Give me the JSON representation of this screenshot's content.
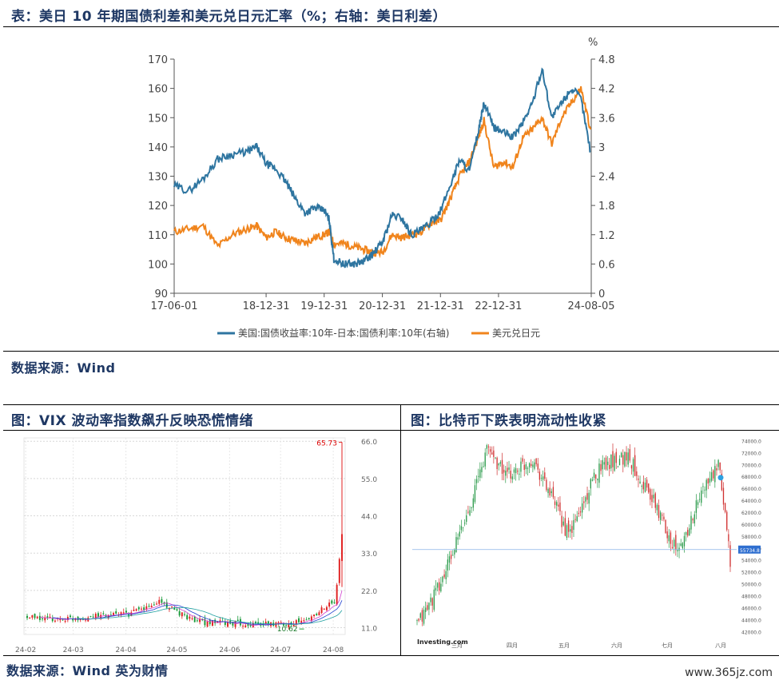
{
  "main_title": "表：美日 10 年期国债利差和美元兑日元汇率（%；右轴：美日利差）",
  "main_source": "数据来源：Wind",
  "vix_title": "图：VIX 波动率指数飙升反映恐慌情绪",
  "btc_title": "图：比特币下跌表明流动性收紧",
  "bottom_source": "数据来源：Wind 英为财情",
  "watermark": "www.365jz.com",
  "colors": {
    "spread": "#2e75a0",
    "usdjpy": "#f0841c",
    "title": "#1f3864"
  },
  "chart_data": [
    {
      "type": "line",
      "title": "",
      "right_axis_unit": "%",
      "x_ticks": [
        "17-06-01",
        "18-12-31",
        "19-12-31",
        "20-12-31",
        "21-12-31",
        "22-12-31",
        "24-08-05"
      ],
      "y_left_ticks": [
        "90",
        "100",
        "110",
        "120",
        "130",
        "140",
        "150",
        "160",
        "170"
      ],
      "y_right_ticks": [
        "0",
        "0.6",
        "1.2",
        "1.8",
        "2.4",
        "3",
        "3.6",
        "4.2",
        "4.8"
      ],
      "ylim_left": [
        90,
        170
      ],
      "ylim_right": [
        0,
        4.8
      ],
      "legend": [
        "美国:国债收益率:10年-日本:国债利率:10年(右轴)",
        "美元兑日元"
      ],
      "legend_position": "bottom",
      "series": [
        {
          "name": "美国:国债收益率:10年-日本:国债利率:10年(右轴)",
          "axis": "right",
          "x": [
            "2017-06",
            "2017-09",
            "2017-12",
            "2018-03",
            "2018-06",
            "2018-09",
            "2018-11",
            "2019-01",
            "2019-03",
            "2019-05",
            "2019-07",
            "2019-09",
            "2019-11",
            "2020-01",
            "2020-02",
            "2020-03",
            "2020-05",
            "2020-07",
            "2020-09",
            "2020-11",
            "2021-01",
            "2021-03",
            "2021-05",
            "2021-07",
            "2021-09",
            "2021-11",
            "2022-01",
            "2022-03",
            "2022-05",
            "2022-07",
            "2022-09",
            "2022-10",
            "2022-12",
            "2023-02",
            "2023-04",
            "2023-06",
            "2023-08",
            "2023-10",
            "2023-12",
            "2024-02",
            "2024-04",
            "2024-06",
            "2024-08"
          ],
          "values": [
            2.2,
            2.1,
            2.35,
            2.75,
            2.85,
            2.9,
            3.0,
            2.65,
            2.55,
            2.3,
            1.95,
            1.65,
            1.75,
            1.7,
            1.5,
            0.7,
            0.6,
            0.6,
            0.65,
            0.8,
            1.05,
            1.6,
            1.55,
            1.2,
            1.3,
            1.45,
            1.7,
            2.2,
            2.75,
            2.5,
            3.4,
            3.9,
            3.4,
            3.3,
            3.2,
            3.5,
            3.9,
            4.6,
            3.6,
            3.9,
            4.2,
            4.0,
            2.9
          ]
        },
        {
          "name": "美元兑日元",
          "axis": "left",
          "x": [
            "2017-06",
            "2017-09",
            "2017-12",
            "2018-03",
            "2018-06",
            "2018-09",
            "2018-11",
            "2019-01",
            "2019-03",
            "2019-05",
            "2019-07",
            "2019-09",
            "2019-11",
            "2020-01",
            "2020-02",
            "2020-03",
            "2020-05",
            "2020-07",
            "2020-09",
            "2020-11",
            "2021-01",
            "2021-03",
            "2021-05",
            "2021-07",
            "2021-09",
            "2021-11",
            "2022-01",
            "2022-03",
            "2022-05",
            "2022-07",
            "2022-09",
            "2022-10",
            "2022-12",
            "2023-02",
            "2023-04",
            "2023-06",
            "2023-08",
            "2023-10",
            "2023-12",
            "2024-02",
            "2024-04",
            "2024-06",
            "2024-08"
          ],
          "values": [
            111,
            112,
            113,
            106,
            110,
            112,
            113,
            109,
            111,
            109,
            108,
            107,
            109,
            110,
            111,
            107,
            107,
            106,
            105,
            104,
            104,
            110,
            109,
            110,
            111,
            114,
            115,
            122,
            130,
            135,
            144,
            149,
            133,
            135,
            133,
            143,
            146,
            150,
            141,
            150,
            155,
            160,
            146
          ]
        }
      ]
    },
    {
      "type": "candlestick",
      "title": "",
      "x_ticks": [
        "24-02",
        "24-03",
        "24-04",
        "24-05",
        "24-06",
        "24-07",
        "24-08"
      ],
      "y_ticks": [
        "11.0",
        "22.0",
        "33.0",
        "44.0",
        "55.0",
        "66.0"
      ],
      "ylim": [
        9,
        67
      ],
      "annotations": [
        "65.73",
        "10.62"
      ],
      "x": [
        "2024-02-01",
        "2024-02-15",
        "2024-03-01",
        "2024-03-15",
        "2024-04-01",
        "2024-04-15",
        "2024-04-19",
        "2024-05-01",
        "2024-05-15",
        "2024-06-01",
        "2024-06-15",
        "2024-07-01",
        "2024-07-15",
        "2024-07-25",
        "2024-08-01",
        "2024-08-02",
        "2024-08-05"
      ],
      "values": [
        14,
        13.5,
        13.8,
        14.5,
        15,
        17.5,
        19,
        15,
        12.5,
        12.3,
        12,
        12.2,
        13,
        17,
        18.6,
        23.4,
        38.6
      ]
    },
    {
      "type": "candlestick",
      "title": "",
      "brand": "Investing.com",
      "x_ticks": [
        "三月",
        "四月",
        "五月",
        "六月",
        "七月",
        "八月"
      ],
      "y_ticks": [
        "42000.0",
        "44000.0",
        "46000.0",
        "48000.0",
        "50000.0",
        "52000.0",
        "54000.0",
        "56000.0",
        "58000.0",
        "60000.0",
        "62000.0",
        "64000.0",
        "66000.0",
        "68000.0",
        "70000.0",
        "72000.0",
        "74000.0"
      ],
      "ylim": [
        41500,
        75000
      ],
      "current_price_label": "55734.8",
      "x": [
        "2024-02-01",
        "2024-02-15",
        "2024-03-01",
        "2024-03-14",
        "2024-03-25",
        "2024-04-10",
        "2024-04-20",
        "2024-05-01",
        "2024-05-20",
        "2024-06-05",
        "2024-06-20",
        "2024-07-05",
        "2024-07-20",
        "2024-07-29",
        "2024-08-02",
        "2024-08-05"
      ],
      "values": [
        43000,
        50000,
        61000,
        73000,
        68000,
        71000,
        65000,
        58000,
        70000,
        71500,
        64000,
        55000,
        66000,
        69500,
        62000,
        54000
      ]
    }
  ]
}
